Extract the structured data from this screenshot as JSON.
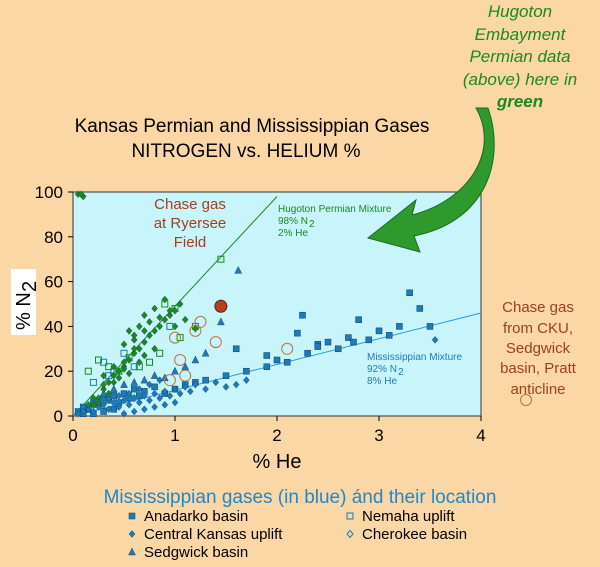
{
  "chart_data": {
    "type": "scatter",
    "title_line1": "Kansas Permian and Mississippian Gases",
    "title_line2": "NITROGEN vs. HELIUM %",
    "xlabel": "% He",
    "ylabel": "% N",
    "ylabel_sub": "2",
    "xlim": [
      0,
      4
    ],
    "ylim": [
      0,
      100
    ],
    "x_ticks": [
      "0",
      "1",
      "2",
      "3",
      "4"
    ],
    "y_ticks": [
      "0",
      "20",
      "40",
      "60",
      "80",
      "100"
    ],
    "mix_lines": {
      "green": {
        "x": [
          0,
          2
        ],
        "y": [
          0,
          98
        ]
      },
      "blue": {
        "x": [
          0,
          4
        ],
        "y": [
          0,
          46
        ]
      }
    },
    "series": [
      {
        "name": "Anadarko basin",
        "marker": "square-filled",
        "color": "#1e7ab8",
        "points": [
          [
            0.05,
            2
          ],
          [
            0.1,
            4
          ],
          [
            0.15,
            3
          ],
          [
            0.2,
            6
          ],
          [
            0.25,
            5
          ],
          [
            0.3,
            8
          ],
          [
            0.35,
            7
          ],
          [
            0.4,
            9
          ],
          [
            0.45,
            6
          ],
          [
            0.5,
            10
          ],
          [
            0.55,
            8
          ],
          [
            0.6,
            12
          ],
          [
            0.65,
            9
          ],
          [
            0.7,
            11
          ],
          [
            0.8,
            13
          ],
          [
            0.9,
            10
          ],
          [
            1.0,
            12
          ],
          [
            1.1,
            14
          ],
          [
            1.2,
            15
          ],
          [
            1.3,
            16
          ],
          [
            1.5,
            18
          ],
          [
            1.7,
            20
          ],
          [
            1.9,
            22
          ],
          [
            2.1,
            24
          ],
          [
            2.3,
            28
          ],
          [
            2.4,
            32
          ],
          [
            2.5,
            33
          ],
          [
            2.6,
            30
          ],
          [
            2.7,
            35
          ],
          [
            2.75,
            33
          ],
          [
            2.8,
            43
          ],
          [
            2.9,
            34
          ],
          [
            3.0,
            38
          ],
          [
            3.1,
            36
          ],
          [
            3.2,
            40
          ],
          [
            3.3,
            55
          ],
          [
            3.4,
            48
          ],
          [
            3.5,
            40
          ],
          [
            2.2,
            37
          ],
          [
            2.4,
            31
          ],
          [
            1.9,
            27
          ],
          [
            2.0,
            25
          ],
          [
            2.25,
            45
          ],
          [
            1.6,
            30
          ],
          [
            0.3,
            2
          ],
          [
            0.4,
            3
          ],
          [
            0.2,
            1
          ],
          [
            0.1,
            1
          ]
        ]
      },
      {
        "name": "Central Kansas uplift",
        "marker": "diamond-filled",
        "color": "#1e7ab8",
        "points": [
          [
            0.05,
            1
          ],
          [
            0.1,
            2
          ],
          [
            0.15,
            3
          ],
          [
            0.2,
            2
          ],
          [
            0.25,
            4
          ],
          [
            0.3,
            5
          ],
          [
            0.35,
            3
          ],
          [
            0.4,
            6
          ],
          [
            0.45,
            4
          ],
          [
            0.5,
            7
          ],
          [
            0.55,
            5
          ],
          [
            0.6,
            8
          ],
          [
            0.65,
            6
          ],
          [
            0.7,
            9
          ],
          [
            0.75,
            7
          ],
          [
            0.8,
            10
          ],
          [
            0.85,
            8
          ],
          [
            0.9,
            11
          ],
          [
            0.95,
            9
          ],
          [
            1.0,
            12
          ],
          [
            1.05,
            10
          ],
          [
            1.1,
            13
          ],
          [
            1.15,
            11
          ],
          [
            1.2,
            14
          ],
          [
            1.3,
            12
          ],
          [
            1.4,
            15
          ],
          [
            1.5,
            13
          ],
          [
            1.6,
            14
          ],
          [
            1.7,
            16
          ],
          [
            3.55,
            34
          ],
          [
            0.5,
            1
          ],
          [
            0.6,
            2
          ],
          [
            0.7,
            3
          ],
          [
            0.8,
            4
          ],
          [
            0.9,
            5
          ],
          [
            1.0,
            6
          ],
          [
            0.55,
            10
          ],
          [
            0.65,
            12
          ],
          [
            0.75,
            14
          ],
          [
            0.85,
            16
          ],
          [
            0.45,
            9
          ],
          [
            0.35,
            8
          ]
        ]
      },
      {
        "name": "Sedgwick basin",
        "marker": "triangle-filled",
        "color": "#1e7ab8",
        "points": [
          [
            1.62,
            65
          ],
          [
            1.45,
            42
          ],
          [
            0.9,
            17
          ],
          [
            0.8,
            18
          ],
          [
            0.7,
            16
          ],
          [
            0.5,
            14
          ],
          [
            0.4,
            12
          ],
          [
            0.3,
            10
          ],
          [
            0.6,
            15
          ],
          [
            1.0,
            20
          ],
          [
            1.1,
            22
          ],
          [
            1.2,
            25
          ],
          [
            1.3,
            28
          ]
        ]
      },
      {
        "name": "Nemaha uplift",
        "marker": "square-open",
        "color": "#1e7ab8",
        "points": [
          [
            0.3,
            24
          ],
          [
            0.4,
            20
          ],
          [
            0.5,
            28
          ],
          [
            0.6,
            22
          ],
          [
            0.2,
            15
          ],
          [
            0.35,
            18
          ]
        ]
      },
      {
        "name": "Cherokee basin",
        "marker": "diamond-open",
        "color": "#1e7ab8",
        "points": [
          [
            0.2,
            5
          ],
          [
            0.3,
            7
          ],
          [
            0.4,
            6
          ],
          [
            0.5,
            9
          ],
          [
            0.6,
            8
          ],
          [
            0.7,
            10
          ]
        ]
      },
      {
        "name": "Hugoton Permian",
        "marker": "diamond-filled",
        "color": "#1a8a1a",
        "points": [
          [
            0.05,
            99
          ],
          [
            0.1,
            98
          ],
          [
            0.08,
            99
          ],
          [
            0.2,
            5
          ],
          [
            0.25,
            8
          ],
          [
            0.3,
            12
          ],
          [
            0.35,
            15
          ],
          [
            0.4,
            18
          ],
          [
            0.45,
            20
          ],
          [
            0.5,
            22
          ],
          [
            0.55,
            25
          ],
          [
            0.6,
            28
          ],
          [
            0.65,
            30
          ],
          [
            0.7,
            33
          ],
          [
            0.75,
            36
          ],
          [
            0.8,
            38
          ],
          [
            0.85,
            40
          ],
          [
            0.9,
            43
          ],
          [
            0.95,
            45
          ],
          [
            1.0,
            47
          ],
          [
            1.05,
            50
          ],
          [
            0.55,
            38
          ],
          [
            0.6,
            34
          ],
          [
            0.65,
            40
          ],
          [
            0.7,
            45
          ],
          [
            0.75,
            42
          ],
          [
            0.8,
            48
          ],
          [
            0.85,
            44
          ],
          [
            0.9,
            52
          ],
          [
            0.95,
            47
          ],
          [
            1.0,
            40
          ],
          [
            1.1,
            43
          ],
          [
            1.2,
            39
          ],
          [
            0.4,
            15
          ],
          [
            0.45,
            17
          ],
          [
            0.5,
            21
          ],
          [
            0.3,
            14
          ],
          [
            0.35,
            10
          ],
          [
            0.25,
            6
          ],
          [
            0.5,
            24
          ],
          [
            0.6,
            30
          ],
          [
            0.55,
            19
          ],
          [
            0.7,
            27
          ],
          [
            0.65,
            24
          ],
          [
            0.8,
            30
          ],
          [
            0.2,
            8
          ],
          [
            0.15,
            5
          ],
          [
            0.3,
            18
          ],
          [
            0.4,
            22
          ],
          [
            0.5,
            32
          ],
          [
            0.6,
            36
          ],
          [
            0.7,
            38
          ]
        ]
      },
      {
        "name": "Hugoton Permian open",
        "marker": "square-open",
        "color": "#1a8a1a",
        "points": [
          [
            1.45,
            70
          ],
          [
            0.15,
            20
          ],
          [
            0.25,
            25
          ],
          [
            0.35,
            22
          ],
          [
            0.45,
            20
          ],
          [
            0.55,
            26
          ],
          [
            0.65,
            22
          ],
          [
            0.75,
            24
          ],
          [
            0.85,
            28
          ],
          [
            1.05,
            35
          ],
          [
            0.95,
            40
          ],
          [
            1.0,
            48
          ],
          [
            0.9,
            50
          ],
          [
            1.2,
            40
          ]
        ]
      },
      {
        "name": "Chase gas CKU",
        "marker": "circle-open",
        "color": "#c0703a",
        "points": [
          [
            1.0,
            35
          ],
          [
            1.05,
            25
          ],
          [
            1.2,
            38
          ],
          [
            1.4,
            33
          ],
          [
            2.1,
            30
          ],
          [
            1.25,
            42
          ],
          [
            0.95,
            16
          ],
          [
            1.1,
            18
          ]
        ]
      }
    ],
    "highlight": {
      "name": "Chase gas at Ryersee Field",
      "x": 1.45,
      "y": 49,
      "color": "#b4401e"
    },
    "annotations": {
      "hugoton_lines": [
        "Hugoton",
        "Embayment",
        "Permian data",
        "(above) here in"
      ],
      "hugoton_bold": "green",
      "chase_ryersee_lines": [
        "Chase gas",
        "at Ryersee",
        "Field"
      ],
      "chase_cku_lines": [
        "Chase gas",
        "from CKU,",
        "Sedgwick",
        "basin, Pratt",
        "anticline"
      ],
      "hugoton_mix_lines": [
        "Hugoton Permian Mixture",
        "98% N",
        "2% He"
      ],
      "hugoton_mix_sub": "2",
      "miss_mix_lines": [
        "Mississippian Mixture",
        "92% N",
        "8% He"
      ],
      "miss_mix_sub": "2"
    },
    "bottom_title": "Mississippian gases (in blue) ánd their location",
    "legend": [
      {
        "label": "Anadarko basin",
        "marker": "square-filled"
      },
      {
        "label": "Nemaha uplift",
        "marker": "square-open"
      },
      {
        "label": "Central Kansas uplift",
        "marker": "diamond-filled"
      },
      {
        "label": "Cherokee basin",
        "marker": "diamond-open"
      },
      {
        "label": "Sedgwick basin",
        "marker": "triangle-filled"
      }
    ],
    "colors": {
      "background": "#fbd7a6",
      "plot_area": "#c8f4fc",
      "blue": "#1e7ab8",
      "green": "#1a8a1a",
      "brown": "#a0401e"
    }
  }
}
